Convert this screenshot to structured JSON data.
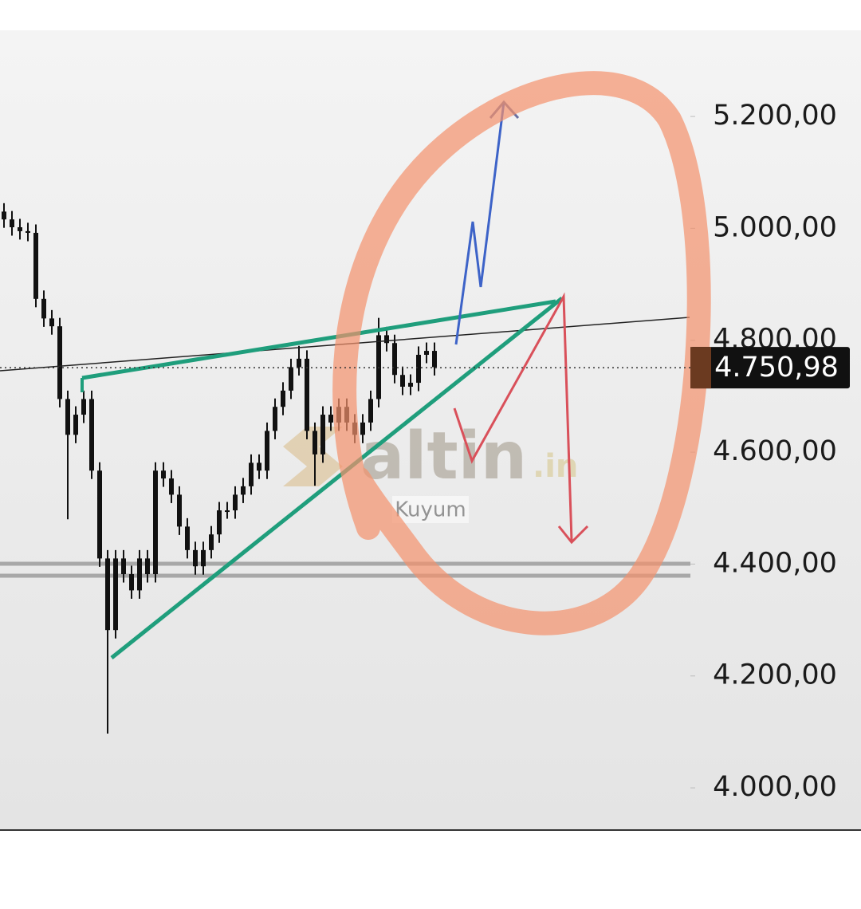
{
  "chart_data": {
    "type": "candlestick",
    "color": "#111111",
    "open": [
      5030,
      5016,
      5002,
      4995,
      4992,
      4874,
      4839,
      4825,
      4695,
      4631,
      4667,
      4695,
      4567,
      4410,
      4282,
      4410,
      4382,
      4353,
      4410,
      4382,
      4567,
      4553,
      4524,
      4467,
      4425,
      4396,
      4425,
      4453,
      4496,
      4496,
      4524,
      4539,
      4581,
      4567,
      4638,
      4681,
      4710,
      4752,
      4767,
      4638,
      4596,
      4667,
      4653,
      4681,
      4653,
      4631,
      4653,
      4695,
      4809,
      4795,
      4738,
      4717,
      4724,
      4774,
      4781
    ],
    "high": [
      5045,
      5031,
      5017,
      5010,
      5007,
      4889,
      4854,
      4840,
      4710,
      4682,
      4710,
      4710,
      4582,
      4425,
      4425,
      4425,
      4397,
      4425,
      4425,
      4582,
      4582,
      4568,
      4539,
      4482,
      4440,
      4440,
      4468,
      4511,
      4511,
      4539,
      4554,
      4596,
      4596,
      4653,
      4696,
      4725,
      4767,
      4790,
      4782,
      4653,
      4682,
      4682,
      4696,
      4696,
      4668,
      4668,
      4710,
      4840,
      4824,
      4810,
      4753,
      4739,
      4789,
      4796,
      4796
    ],
    "low": [
      5001,
      4987,
      4980,
      4977,
      4859,
      4824,
      4810,
      4680,
      4480,
      4616,
      4652,
      4552,
      4395,
      4097,
      4267,
      4367,
      4338,
      4338,
      4367,
      4367,
      4538,
      4509,
      4452,
      4410,
      4381,
      4381,
      4410,
      4438,
      4481,
      4481,
      4509,
      4524,
      4552,
      4552,
      4623,
      4666,
      4695,
      4737,
      4623,
      4540,
      4581,
      4638,
      4638,
      4638,
      4616,
      4616,
      4638,
      4680,
      4780,
      4723,
      4702,
      4702,
      4709,
      4759,
      4737
    ],
    "close": [
      5016,
      5002,
      4995,
      4992,
      4874,
      4839,
      4825,
      4695,
      4631,
      4667,
      4695,
      4567,
      4410,
      4282,
      4410,
      4382,
      4353,
      4410,
      4382,
      4567,
      4553,
      4524,
      4467,
      4425,
      4396,
      4425,
      4453,
      4496,
      4496,
      4524,
      4539,
      4581,
      4567,
      4638,
      4681,
      4710,
      4752,
      4767,
      4638,
      4596,
      4667,
      4653,
      4681,
      4653,
      4631,
      4653,
      4695,
      4809,
      4795,
      4738,
      4717,
      4724,
      4774,
      4781,
      4752
    ],
    "ylim": [
      3926,
      5354
    ],
    "yticks": [
      {
        "value": 4000,
        "label": "4.000,00"
      },
      {
        "value": 4200,
        "label": "4.200,00"
      },
      {
        "value": 4400,
        "label": "4.400,00"
      },
      {
        "value": 4600,
        "label": "4.600,00"
      },
      {
        "value": 4800,
        "label": "4.800,00"
      },
      {
        "value": 5000,
        "label": "5.000,00"
      },
      {
        "value": 5200,
        "label": "5.200,00"
      }
    ],
    "last_price": {
      "value": 4750.98,
      "label": "4.750,98"
    },
    "watermark": {
      "brand": "altin",
      "suffix": ".in",
      "subtitle": "Kuyum"
    }
  }
}
